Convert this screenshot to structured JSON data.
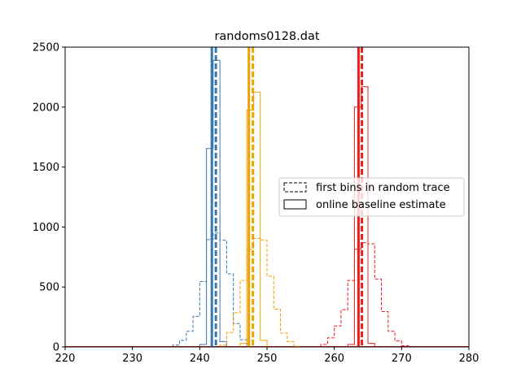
{
  "chart_data": {
    "type": "histogram",
    "title": "randoms0128.dat",
    "xlim": [
      220,
      280
    ],
    "ylim": [
      0,
      2500
    ],
    "xticks": [
      220,
      230,
      240,
      250,
      260,
      270,
      280
    ],
    "yticks": [
      0,
      500,
      1000,
      1500,
      2000,
      2500
    ],
    "grid": false,
    "legend": {
      "position": "center-right",
      "entries": [
        {
          "label": "first bins in random trace",
          "style": "dashed"
        },
        {
          "label": "online baseline estimate",
          "style": "solid"
        }
      ]
    },
    "series": [
      {
        "group": "blue",
        "style": "dashed",
        "color": "#3a78b0",
        "bin_width": 1,
        "bins": [
          [
            236,
            15
          ],
          [
            237,
            55
          ],
          [
            238,
            130
          ],
          [
            239,
            255
          ],
          [
            240,
            545
          ],
          [
            241,
            895
          ],
          [
            242,
            950
          ],
          [
            243,
            890
          ],
          [
            244,
            610
          ],
          [
            245,
            195
          ],
          [
            246,
            60
          ]
        ]
      },
      {
        "group": "blue",
        "style": "solid",
        "color": "#3a78b0",
        "bin_width": 1,
        "bins": [
          [
            240,
            20
          ],
          [
            241,
            1655
          ],
          [
            242,
            2390
          ],
          [
            243,
            45
          ]
        ]
      },
      {
        "group": "orange",
        "style": "dashed",
        "color": "#f2a000",
        "bin_width": 1,
        "bins": [
          [
            243,
            15
          ],
          [
            244,
            120
          ],
          [
            245,
            285
          ],
          [
            246,
            555
          ],
          [
            247,
            815
          ],
          [
            248,
            905
          ],
          [
            249,
            890
          ],
          [
            250,
            590
          ],
          [
            251,
            315
          ],
          [
            252,
            115
          ],
          [
            253,
            45
          ],
          [
            254,
            5
          ]
        ]
      },
      {
        "group": "orange",
        "style": "solid",
        "color": "#f2a000",
        "bin_width": 1,
        "bins": [
          [
            246,
            30
          ],
          [
            247,
            1975
          ],
          [
            248,
            2125
          ],
          [
            249,
            55
          ]
        ]
      },
      {
        "group": "red",
        "style": "dashed",
        "color": "#ee1c1c",
        "bin_width": 1,
        "bins": [
          [
            258,
            20
          ],
          [
            259,
            75
          ],
          [
            260,
            175
          ],
          [
            261,
            310
          ],
          [
            262,
            555
          ],
          [
            263,
            815
          ],
          [
            264,
            870
          ],
          [
            265,
            860
          ],
          [
            266,
            565
          ],
          [
            267,
            295
          ],
          [
            268,
            130
          ],
          [
            269,
            50
          ],
          [
            270,
            10
          ]
        ]
      },
      {
        "group": "red",
        "style": "solid",
        "color": "#ee1c1c",
        "bin_width": 1,
        "bins": [
          [
            262,
            20
          ],
          [
            263,
            2000
          ],
          [
            264,
            2170
          ],
          [
            265,
            30
          ]
        ]
      }
    ],
    "vlines": [
      {
        "x": 241.8,
        "color": "#3a78b0",
        "style": "solid"
      },
      {
        "x": 242.4,
        "color": "#3a78b0",
        "style": "dashed"
      },
      {
        "x": 247.3,
        "color": "#f2a000",
        "style": "solid"
      },
      {
        "x": 247.9,
        "color": "#f2a000",
        "style": "dashed"
      },
      {
        "x": 263.6,
        "color": "#ee1c1c",
        "style": "solid"
      },
      {
        "x": 264.1,
        "color": "#ee1c1c",
        "style": "dashed"
      }
    ]
  }
}
